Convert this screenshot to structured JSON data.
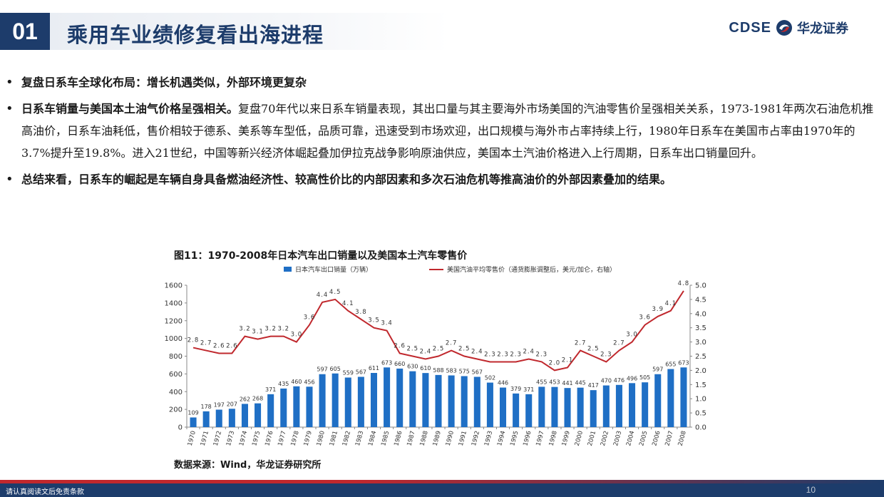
{
  "header": {
    "section_number": "01",
    "title": "乘用车业绩修复看出海进程",
    "logo_en": "CDSE",
    "logo_cn": "华龙证券",
    "logo_icon": "dragon-swirl-icon"
  },
  "bullets": [
    {
      "bold": "复盘日系车全球化布局：增长机遇类似，外部环境更复杂",
      "text": ""
    },
    {
      "bold": "日系车销量与美国本土油气价格呈强相关。",
      "text": "复盘70年代以来日系车销量表现，其出口量与其主要海外市场美国的汽油零售价呈强相关关系，1973-1981年两次石油危机推高油价，日系车油耗低，售价相较于德系、美系等车型低，品质可靠，迅速受到市场欢迎，出口规模与海外市占率持续上行，1980年日系车在美国市占率由1970年的3.7%提升至19.8%。进入21世纪，中国等新兴经济体崛起叠加伊拉克战争影响原油供应，美国本土汽油价格进入上行周期，日系车出口销量回升。"
    },
    {
      "bold": "总结来看，日系车的崛起是车辆自身具备燃油经济性、较高性价比的内部因素和多次石油危机等推高油价的外部因素叠加的结果。",
      "text": ""
    }
  ],
  "figure": {
    "title": "图11：1970-2008年日本汽车出口销量以及美国本土汽车零售价",
    "source": "数据来源：Wind，华龙证券研究所"
  },
  "chart_data": {
    "type": "bar+line",
    "categories": [
      "1970",
      "1971",
      "1972",
      "1973",
      "1974",
      "1975",
      "1976",
      "1977",
      "1978",
      "1979",
      "1980",
      "1981",
      "1982",
      "1983",
      "1984",
      "1985",
      "1986",
      "1987",
      "1988",
      "1989",
      "1990",
      "1991",
      "1992",
      "1993",
      "1994",
      "1995",
      "1996",
      "1997",
      "1998",
      "1999",
      "2000",
      "2001",
      "2002",
      "2003",
      "2004",
      "2005",
      "2006",
      "2007",
      "2008"
    ],
    "series": [
      {
        "name": "日本汽车出口销量（万辆）",
        "type": "bar",
        "axis": "left",
        "color": "#1f6fc5",
        "values": [
          109,
          178,
          197,
          207,
          262,
          268,
          371,
          435,
          460,
          456,
          597,
          605,
          559,
          567,
          611,
          673,
          660,
          630,
          610,
          588,
          583,
          575,
          567,
          502,
          446,
          379,
          371,
          455,
          453,
          441,
          445,
          417,
          470,
          476,
          496,
          505,
          597,
          655,
          673
        ],
        "labels": [
          "109",
          "178",
          "197",
          "207",
          "262",
          "268",
          "371",
          "435",
          "460",
          "456",
          "597",
          "605",
          "559",
          "567",
          "611",
          "673",
          "660",
          "630",
          "610",
          "588",
          "583",
          "575",
          "567",
          "502",
          "446",
          "379",
          "371",
          "455",
          "453",
          "441",
          "445",
          "417",
          "470",
          "476",
          "496",
          "505",
          "597",
          "655",
          "673"
        ]
      },
      {
        "name": "美国汽油平均零售价（通货膨胀调整后，美元/加仑，右轴）",
        "type": "line",
        "axis": "right",
        "color": "#c0282d",
        "values": [
          2.8,
          2.7,
          2.6,
          2.6,
          3.2,
          3.1,
          3.2,
          3.2,
          3.0,
          3.6,
          4.4,
          4.5,
          4.1,
          3.8,
          3.5,
          3.4,
          2.6,
          2.5,
          2.4,
          2.5,
          2.7,
          2.5,
          2.4,
          2.3,
          2.3,
          2.3,
          2.4,
          2.3,
          2.0,
          2.1,
          2.7,
          2.5,
          2.3,
          2.7,
          3.0,
          3.6,
          3.9,
          4.1,
          4.8
        ],
        "labels": [
          "2.8",
          "2.7",
          "2.6",
          "2.6",
          "3.2",
          "3.1",
          "3.2",
          "3.2",
          "3.0",
          "3.6",
          "4.4",
          "4.5",
          "4.1",
          "3.8",
          "3.5",
          "3.4",
          "2.6",
          "2.5",
          "2.4",
          "2.5",
          "2.7",
          "2.5",
          "2.4",
          "2.3",
          "2.3",
          "2.3",
          "2.4",
          "2.3",
          "2.0",
          "2.1",
          "2.7",
          "2.5",
          "2.3",
          "2.7",
          "3.0",
          "3.6",
          "3.9",
          "4.1",
          "4.8"
        ]
      }
    ],
    "y_left": {
      "min": 0,
      "max": 1600,
      "ticks": [
        "0",
        "200",
        "400",
        "600",
        "800",
        "1000",
        "1200",
        "1400",
        "1600"
      ]
    },
    "y_right": {
      "min": 0,
      "max": 5,
      "ticks": [
        "0.0",
        "0.5",
        "1.0",
        "1.5",
        "2.0",
        "2.5",
        "3.0",
        "3.5",
        "4.0",
        "4.5",
        "5.0"
      ]
    },
    "legend_position": "top",
    "grid": false
  },
  "footer": {
    "disclaimer": "请认真阅读文后免责条款",
    "page": "10"
  }
}
